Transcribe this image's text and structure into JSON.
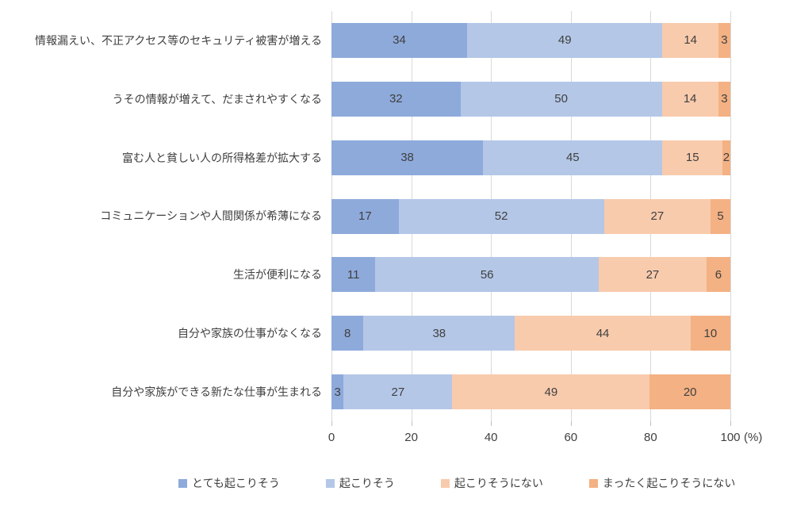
{
  "chart_data": {
    "type": "bar",
    "stacked": true,
    "orientation": "horizontal",
    "title": "",
    "categories": [
      "情報漏えい、不正アクセス等のセキュリティ被害が増える",
      "うその情報が増えて、だまされやすくなる",
      "富む人と貧しい人の所得格差が拡大する",
      "コミュニケーションや人間関係が希薄になる",
      "生活が便利になる",
      "自分や家族の仕事がなくなる",
      "自分や家族ができる新たな仕事が生まれる"
    ],
    "series": [
      {
        "name": "とても起こりそう",
        "color": "#8EAADB",
        "values": [
          34,
          32,
          38,
          17,
          11,
          8,
          3
        ]
      },
      {
        "name": "起こりそう",
        "color": "#B4C7E7",
        "values": [
          49,
          50,
          45,
          52,
          56,
          38,
          27
        ]
      },
      {
        "name": "起こりそうにない",
        "color": "#F8CBAD",
        "values": [
          14,
          14,
          15,
          27,
          27,
          44,
          49
        ]
      },
      {
        "name": "まったく起こりそうにない",
        "color": "#F4B183",
        "values": [
          3,
          3,
          2,
          5,
          6,
          10,
          20
        ]
      }
    ],
    "xlim": [
      0,
      100
    ],
    "xticks": [
      0,
      20,
      40,
      60,
      80,
      100
    ],
    "x_unit_label": "(%)",
    "grid": true,
    "legend_position": "bottom"
  },
  "colors": {
    "gridline": "#D9D9D9",
    "tick": "#BFBFBF",
    "value_text": "#404040",
    "label_text": "#3F3F3F",
    "background": "#FFFFFF"
  }
}
